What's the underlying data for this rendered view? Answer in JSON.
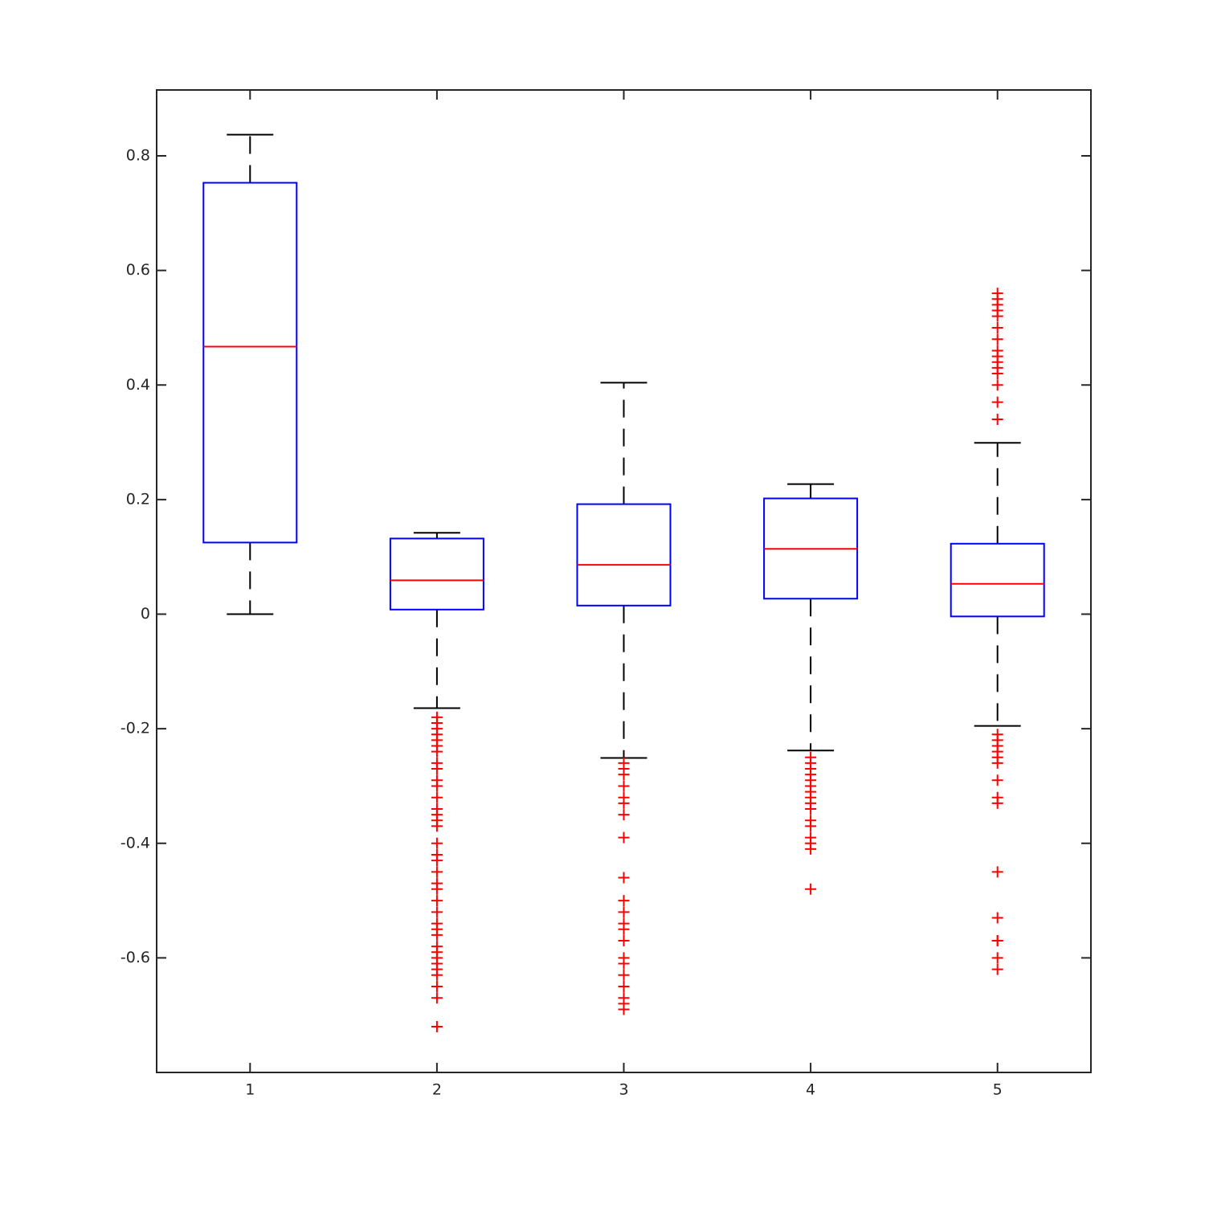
{
  "chart_data": {
    "type": "box",
    "xlim": [
      0.5,
      5.5
    ],
    "xticks": [
      1,
      2,
      3,
      4,
      5
    ],
    "ylim": [
      -0.8,
      0.915
    ],
    "yticks": [
      -0.6,
      -0.4,
      -0.2,
      0,
      0.2,
      0.4,
      0.6,
      0.8
    ],
    "box_color": "#0000ff",
    "median_color": "#ff0000",
    "whisker_color": "#000000",
    "outlier_color": "#ff0000",
    "boxes": [
      {
        "x": 1,
        "whisker_low": 0,
        "q1": 0.125,
        "median": 0.467,
        "q3": 0.753,
        "whisker_high": 0.837,
        "outliers": []
      },
      {
        "x": 2,
        "whisker_low": -0.164,
        "q1": 0.008,
        "median": 0.059,
        "q3": 0.132,
        "whisker_high": 0.142,
        "outliers": [
          -0.18,
          -0.19,
          -0.2,
          -0.21,
          -0.22,
          -0.23,
          -0.24,
          -0.26,
          -0.27,
          -0.29,
          -0.3,
          -0.32,
          -0.34,
          -0.35,
          -0.36,
          -0.37,
          -0.4,
          -0.42,
          -0.43,
          -0.45,
          -0.47,
          -0.48,
          -0.5,
          -0.52,
          -0.54,
          -0.55,
          -0.56,
          -0.58,
          -0.59,
          -0.6,
          -0.61,
          -0.62,
          -0.63,
          -0.65,
          -0.67,
          -0.72
        ]
      },
      {
        "x": 3,
        "whisker_low": -0.251,
        "q1": 0.015,
        "median": 0.086,
        "q3": 0.192,
        "whisker_high": 0.404,
        "outliers": [
          -0.26,
          -0.27,
          -0.28,
          -0.3,
          -0.32,
          -0.33,
          -0.35,
          -0.39,
          -0.46,
          -0.5,
          -0.52,
          -0.54,
          -0.55,
          -0.57,
          -0.6,
          -0.61,
          -0.63,
          -0.65,
          -0.67,
          -0.68,
          -0.69
        ]
      },
      {
        "x": 4,
        "whisker_low": -0.238,
        "q1": 0.027,
        "median": 0.114,
        "q3": 0.202,
        "whisker_high": 0.227,
        "outliers": [
          -0.25,
          -0.26,
          -0.27,
          -0.28,
          -0.29,
          -0.3,
          -0.31,
          -0.32,
          -0.33,
          -0.34,
          -0.36,
          -0.37,
          -0.39,
          -0.4,
          -0.41,
          -0.48
        ]
      },
      {
        "x": 5,
        "whisker_low": -0.195,
        "q1": -0.004,
        "median": 0.053,
        "q3": 0.123,
        "whisker_high": 0.299,
        "outliers": [
          0.56,
          0.55,
          0.54,
          0.53,
          0.52,
          0.5,
          0.48,
          0.46,
          0.45,
          0.44,
          0.43,
          0.42,
          0.4,
          0.37,
          0.34,
          -0.21,
          -0.22,
          -0.23,
          -0.24,
          -0.25,
          -0.26,
          -0.29,
          -0.32,
          -0.33,
          -0.45,
          -0.53,
          -0.57,
          -0.57,
          -0.6,
          -0.62
        ]
      }
    ]
  }
}
